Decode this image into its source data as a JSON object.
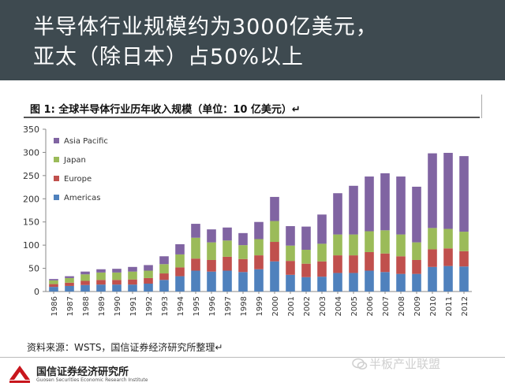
{
  "slide": {
    "title_line1": "半导体行业规模约为3000亿美元，",
    "title_line2": "亚太（除日本）占50%以上",
    "figure_title": "图 1:  全球半导体行业历年收入规模（单位：10 亿美元）↵",
    "source": "资料来源：WSTS，国信证券经济研究所整理↵",
    "logo_text": "国信证券经济研究所",
    "logo_sub": "Guosen Securities Economic Research Institute",
    "watermark": "半板产业联盟"
  },
  "colors": {
    "header_bg": "#3e4a50",
    "americas": "#4f81bd",
    "europe": "#c0504d",
    "japan": "#9bbb59",
    "asia_pacific": "#8064a2",
    "logo_red": "#c8161d"
  },
  "chart_data": {
    "type": "bar",
    "stacked": true,
    "categories": [
      "1986",
      "1987",
      "1988",
      "1989",
      "1990",
      "1991",
      "1992",
      "1993",
      "1994",
      "1995",
      "1996",
      "1997",
      "1998",
      "1999",
      "2000",
      "2001",
      "2002",
      "2003",
      "2004",
      "2005",
      "2006",
      "2007",
      "2008",
      "2009",
      "2010",
      "2011",
      "2012"
    ],
    "series": [
      {
        "name": "Americas",
        "values": [
          10,
          12,
          14,
          15,
          15,
          15,
          17,
          25,
          33,
          45,
          43,
          45,
          42,
          48,
          65,
          36,
          31,
          32,
          40,
          40,
          45,
          42,
          38,
          38,
          53,
          55,
          54
        ]
      },
      {
        "name": "Europe",
        "values": [
          6,
          7,
          9,
          10,
          10,
          11,
          12,
          14,
          19,
          26,
          25,
          30,
          28,
          30,
          42,
          30,
          29,
          33,
          38,
          38,
          40,
          40,
          38,
          30,
          38,
          38,
          33
        ]
      },
      {
        "name": "Japan",
        "values": [
          8,
          10,
          14,
          16,
          16,
          17,
          16,
          20,
          28,
          45,
          38,
          35,
          30,
          35,
          45,
          33,
          30,
          38,
          45,
          45,
          45,
          50,
          47,
          38,
          46,
          42,
          42
        ]
      },
      {
        "name": "Asia Pacific",
        "values": [
          3,
          4,
          6,
          7,
          8,
          10,
          12,
          17,
          22,
          30,
          28,
          28,
          26,
          37,
          52,
          42,
          50,
          63,
          89,
          105,
          118,
          123,
          125,
          120,
          161,
          164,
          163
        ]
      }
    ],
    "ylim": [
      0,
      350
    ],
    "yticks": [
      "0",
      "50",
      "100",
      "150",
      "200",
      "250",
      "300",
      "350"
    ],
    "legend": [
      "Asia Pacific",
      "Japan",
      "Europe",
      "Americas"
    ],
    "legend_position": "top-left",
    "grid": false
  }
}
